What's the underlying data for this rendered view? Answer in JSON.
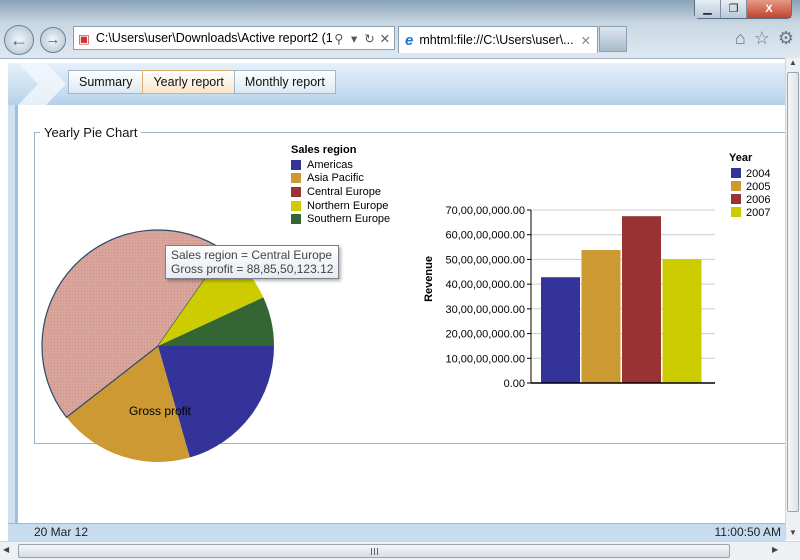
{
  "browser": {
    "address": "C:\\Users\\user\\Downloads\\Active report2 (1",
    "tab_title": "mhtml:file://C:\\Users\\user\\...",
    "window_buttons": [
      "minimize",
      "restore",
      "close"
    ]
  },
  "report": {
    "tabs": [
      {
        "label": "Summary",
        "active": false
      },
      {
        "label": "Yearly report",
        "active": true
      },
      {
        "label": "Monthly report",
        "active": false
      }
    ],
    "section_title": "Yearly Pie Chart",
    "footer_date": "20 Mar 12",
    "footer_time": "11:00:50 AM"
  },
  "tooltip": {
    "line1": "Sales region = Central Europe",
    "line2": "Gross profit = 88,85,50,123.12"
  },
  "chart_data": [
    {
      "type": "pie",
      "label": "Gross profit",
      "legend_title": "Sales region",
      "legend_position": "top-right",
      "categories": [
        "Americas",
        "Asia Pacific",
        "Central Europe",
        "Northern Europe",
        "Southern Europe"
      ],
      "values": [
        404000000,
        371000000,
        888550123.12,
        165000000,
        135000000
      ],
      "colors": [
        "#333399",
        "#cc9933",
        "#993333",
        "#cccc00",
        "#336633"
      ],
      "highlighted": "Central Europe",
      "highlight_color": "#d9a49a"
    },
    {
      "type": "bar",
      "ylabel": "Revenue",
      "legend_title": "Year",
      "legend_position": "top-right",
      "categories": [
        "2004",
        "2005",
        "2006",
        "2007"
      ],
      "values": [
        428000000,
        538000000,
        675000000,
        500000000
      ],
      "colors": [
        "#333399",
        "#cc9933",
        "#993333",
        "#cccc00"
      ],
      "ylim": [
        0,
        700000000
      ],
      "yticks": [
        "0.00",
        "10,00,00,000.00",
        "20,00,00,000.00",
        "30,00,00,000.00",
        "40,00,00,000.00",
        "50,00,00,000.00",
        "60,00,00,000.00",
        "70,00,00,000.00"
      ],
      "grid": true
    }
  ]
}
